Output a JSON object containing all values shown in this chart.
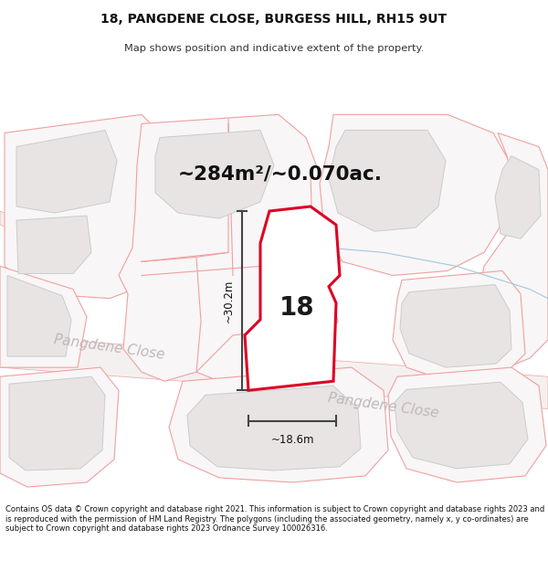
{
  "title_line1": "18, PANGDENE CLOSE, BURGESS HILL, RH15 9UT",
  "title_line2": "Map shows position and indicative extent of the property.",
  "area_text": "~284m²/~0.070ac.",
  "label_18": "18",
  "dim_vertical": "~30.2m",
  "dim_horizontal": "~18.6m",
  "road_label1": "Pangdene Close",
  "road_label2": "Pangdene Close",
  "footer": "Contains OS data © Crown copyright and database right 2021. This information is subject to Crown copyright and database rights 2023 and is reproduced with the permission of HM Land Registry. The polygons (including the associated geometry, namely x, y co-ordinates) are subject to Crown copyright and database rights 2023 Ordnance Survey 100026316.",
  "bg_color": "#ffffff",
  "map_bg": "#f8f6f6",
  "plot_fill": "#ffffff",
  "plot_outline": "#dd0022",
  "boundary_color": "#f0a0a0",
  "building_fill": "#e8e4e4",
  "building_edge": "#cccccc",
  "dim_color": "#444444",
  "road_text_color": "#c0b8b8",
  "blue_line_color": "#a0c8e0",
  "header_bg": "#f0eeee"
}
